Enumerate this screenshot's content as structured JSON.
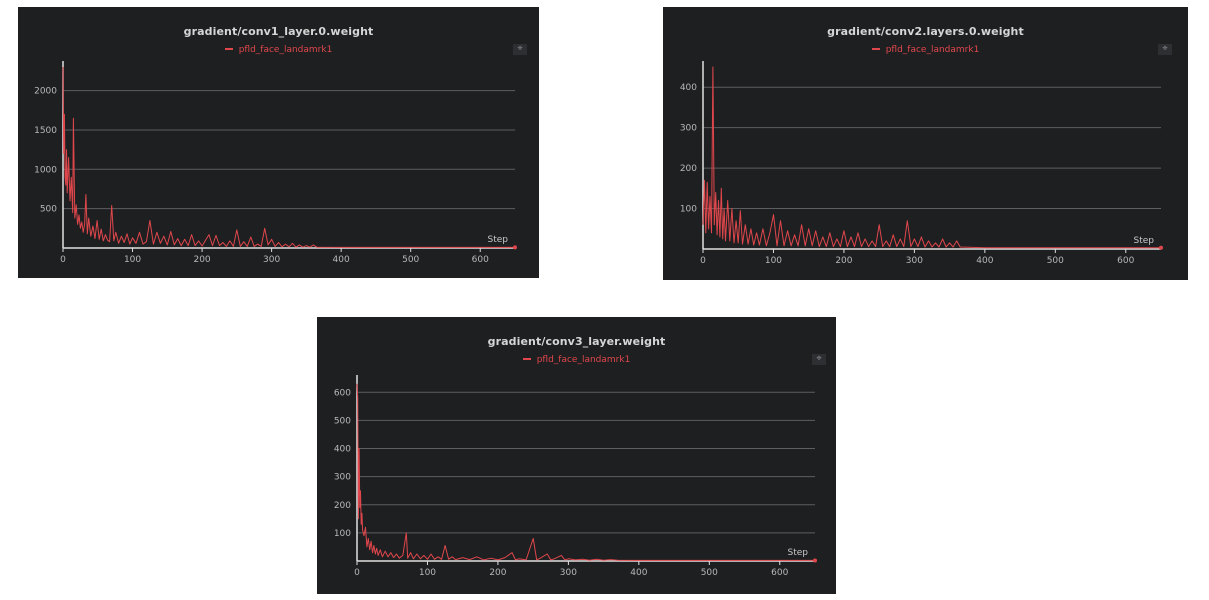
{
  "colors": {
    "background": "#1e1f21",
    "series": "#e0474c",
    "grid": "#5c5e62",
    "axis": "#e0e0e0",
    "text": "#d6d6d6"
  },
  "expand_icon": "expand-icon",
  "chart_data": [
    {
      "type": "line",
      "title": "gradient/conv1_layer.0.weight",
      "xlabel": "Step",
      "ylabel": "",
      "xlim": [
        0,
        650
      ],
      "ylim": [
        0,
        2300
      ],
      "xticks": [
        0,
        100,
        200,
        300,
        400,
        500,
        600
      ],
      "yticks": [
        500,
        1000,
        1500,
        2000
      ],
      "grid": true,
      "legend": "top-center",
      "series": [
        {
          "name": "pfld_face_landamrk1",
          "points": [
            [
              0,
              2300
            ],
            [
              1,
              1200
            ],
            [
              2,
              1700
            ],
            [
              3,
              900
            ],
            [
              4,
              800
            ],
            [
              5,
              1250
            ],
            [
              6,
              700
            ],
            [
              8,
              1150
            ],
            [
              10,
              600
            ],
            [
              12,
              900
            ],
            [
              14,
              450
            ],
            [
              15,
              1650
            ],
            [
              17,
              380
            ],
            [
              19,
              550
            ],
            [
              21,
              300
            ],
            [
              23,
              420
            ],
            [
              25,
              250
            ],
            [
              27,
              330
            ],
            [
              29,
              200
            ],
            [
              31,
              300
            ],
            [
              33,
              680
            ],
            [
              35,
              180
            ],
            [
              37,
              380
            ],
            [
              40,
              150
            ],
            [
              43,
              280
            ],
            [
              46,
              120
            ],
            [
              49,
              350
            ],
            [
              52,
              110
            ],
            [
              55,
              240
            ],
            [
              58,
              90
            ],
            [
              61,
              170
            ],
            [
              64,
              100
            ],
            [
              67,
              80
            ],
            [
              70,
              540
            ],
            [
              73,
              90
            ],
            [
              76,
              200
            ],
            [
              80,
              60
            ],
            [
              84,
              150
            ],
            [
              88,
              70
            ],
            [
              92,
              180
            ],
            [
              96,
              50
            ],
            [
              100,
              130
            ],
            [
              105,
              60
            ],
            [
              110,
              200
            ],
            [
              115,
              50
            ],
            [
              120,
              80
            ],
            [
              125,
              350
            ],
            [
              130,
              50
            ],
            [
              135,
              200
            ],
            [
              140,
              60
            ],
            [
              145,
              150
            ],
            [
              150,
              40
            ],
            [
              155,
              210
            ],
            [
              160,
              40
            ],
            [
              165,
              120
            ],
            [
              170,
              30
            ],
            [
              175,
              110
            ],
            [
              180,
              30
            ],
            [
              185,
              170
            ],
            [
              190,
              30
            ],
            [
              195,
              90
            ],
            [
              200,
              25
            ],
            [
              205,
              100
            ],
            [
              210,
              170
            ],
            [
              215,
              30
            ],
            [
              220,
              160
            ],
            [
              225,
              30
            ],
            [
              230,
              70
            ],
            [
              235,
              20
            ],
            [
              240,
              90
            ],
            [
              245,
              20
            ],
            [
              250,
              230
            ],
            [
              255,
              20
            ],
            [
              260,
              80
            ],
            [
              265,
              20
            ],
            [
              270,
              140
            ],
            [
              275,
              20
            ],
            [
              280,
              50
            ],
            [
              285,
              20
            ],
            [
              290,
              250
            ],
            [
              295,
              40
            ],
            [
              300,
              110
            ],
            [
              305,
              20
            ],
            [
              310,
              70
            ],
            [
              315,
              15
            ],
            [
              320,
              50
            ],
            [
              325,
              15
            ],
            [
              330,
              60
            ],
            [
              335,
              10
            ],
            [
              340,
              40
            ],
            [
              345,
              10
            ],
            [
              350,
              30
            ],
            [
              355,
              10
            ],
            [
              360,
              40
            ],
            [
              365,
              10
            ],
            [
              400,
              8
            ],
            [
              500,
              8
            ],
            [
              600,
              8
            ],
            [
              650,
              8
            ]
          ]
        }
      ]
    },
    {
      "type": "line",
      "title": "gradient/conv2.layers.0.weight",
      "xlabel": "Step",
      "ylabel": "",
      "xlim": [
        0,
        650
      ],
      "ylim": [
        0,
        450
      ],
      "xticks": [
        0,
        100,
        200,
        300,
        400,
        500,
        600
      ],
      "yticks": [
        100,
        200,
        300,
        400
      ],
      "grid": true,
      "legend": "top-center",
      "series": [
        {
          "name": "pfld_face_landamrk1",
          "points": [
            [
              0,
              60
            ],
            [
              2,
              170
            ],
            [
              4,
              40
            ],
            [
              6,
              165
            ],
            [
              8,
              50
            ],
            [
              10,
              130
            ],
            [
              12,
              40
            ],
            [
              14,
              450
            ],
            [
              16,
              60
            ],
            [
              18,
              140
            ],
            [
              20,
              35
            ],
            [
              22,
              120
            ],
            [
              24,
              30
            ],
            [
              26,
              150
            ],
            [
              28,
              25
            ],
            [
              30,
              100
            ],
            [
              32,
              20
            ],
            [
              35,
              120
            ],
            [
              38,
              20
            ],
            [
              41,
              100
            ],
            [
              44,
              15
            ],
            [
              47,
              70
            ],
            [
              50,
              15
            ],
            [
              53,
              95
            ],
            [
              56,
              12
            ],
            [
              60,
              60
            ],
            [
              64,
              12
            ],
            [
              68,
              50
            ],
            [
              72,
              10
            ],
            [
              76,
              40
            ],
            [
              80,
              10
            ],
            [
              85,
              50
            ],
            [
              90,
              8
            ],
            [
              95,
              40
            ],
            [
              100,
              85
            ],
            [
              105,
              8
            ],
            [
              110,
              70
            ],
            [
              115,
              8
            ],
            [
              120,
              45
            ],
            [
              125,
              8
            ],
            [
              130,
              35
            ],
            [
              135,
              8
            ],
            [
              140,
              60
            ],
            [
              145,
              8
            ],
            [
              150,
              50
            ],
            [
              155,
              8
            ],
            [
              160,
              45
            ],
            [
              165,
              6
            ],
            [
              170,
              30
            ],
            [
              175,
              6
            ],
            [
              180,
              40
            ],
            [
              185,
              6
            ],
            [
              190,
              25
            ],
            [
              195,
              6
            ],
            [
              200,
              45
            ],
            [
              205,
              6
            ],
            [
              210,
              30
            ],
            [
              215,
              6
            ],
            [
              220,
              40
            ],
            [
              225,
              6
            ],
            [
              230,
              25
            ],
            [
              235,
              6
            ],
            [
              240,
              20
            ],
            [
              245,
              6
            ],
            [
              250,
              60
            ],
            [
              255,
              6
            ],
            [
              260,
              20
            ],
            [
              265,
              6
            ],
            [
              270,
              35
            ],
            [
              275,
              6
            ],
            [
              280,
              25
            ],
            [
              285,
              6
            ],
            [
              290,
              70
            ],
            [
              295,
              6
            ],
            [
              300,
              25
            ],
            [
              305,
              6
            ],
            [
              310,
              30
            ],
            [
              315,
              5
            ],
            [
              320,
              20
            ],
            [
              325,
              5
            ],
            [
              330,
              15
            ],
            [
              335,
              5
            ],
            [
              340,
              25
            ],
            [
              345,
              5
            ],
            [
              350,
              15
            ],
            [
              355,
              5
            ],
            [
              360,
              20
            ],
            [
              365,
              5
            ],
            [
              400,
              3
            ],
            [
              500,
              3
            ],
            [
              600,
              3
            ],
            [
              650,
              3
            ]
          ]
        }
      ]
    },
    {
      "type": "line",
      "title": "gradient/conv3_layer.weight",
      "xlabel": "Step",
      "ylabel": "",
      "xlim": [
        0,
        650
      ],
      "ylim": [
        0,
        640
      ],
      "xticks": [
        0,
        100,
        200,
        300,
        400,
        500,
        600
      ],
      "yticks": [
        100,
        200,
        300,
        400,
        500,
        600
      ],
      "grid": true,
      "legend": "top-center",
      "series": [
        {
          "name": "pfld_face_landamrk1",
          "points": [
            [
              0,
              630
            ],
            [
              1,
              580
            ],
            [
              2,
              150
            ],
            [
              3,
              400
            ],
            [
              4,
              190
            ],
            [
              5,
              250
            ],
            [
              6,
              130
            ],
            [
              7,
              170
            ],
            [
              8,
              110
            ],
            [
              10,
              90
            ],
            [
              12,
              120
            ],
            [
              14,
              50
            ],
            [
              16,
              80
            ],
            [
              18,
              40
            ],
            [
              20,
              70
            ],
            [
              22,
              30
            ],
            [
              24,
              55
            ],
            [
              26,
              25
            ],
            [
              28,
              45
            ],
            [
              30,
              20
            ],
            [
              33,
              40
            ],
            [
              36,
              15
            ],
            [
              40,
              35
            ],
            [
              44,
              15
            ],
            [
              48,
              30
            ],
            [
              52,
              12
            ],
            [
              56,
              25
            ],
            [
              60,
              10
            ],
            [
              65,
              20
            ],
            [
              70,
              100
            ],
            [
              72,
              10
            ],
            [
              76,
              30
            ],
            [
              80,
              8
            ],
            [
              85,
              25
            ],
            [
              90,
              8
            ],
            [
              95,
              20
            ],
            [
              100,
              6
            ],
            [
              105,
              25
            ],
            [
              110,
              6
            ],
            [
              115,
              15
            ],
            [
              120,
              6
            ],
            [
              125,
              55
            ],
            [
              130,
              6
            ],
            [
              135,
              15
            ],
            [
              140,
              5
            ],
            [
              150,
              12
            ],
            [
              160,
              5
            ],
            [
              170,
              15
            ],
            [
              180,
              4
            ],
            [
              190,
              10
            ],
            [
              200,
              4
            ],
            [
              210,
              12
            ],
            [
              220,
              30
            ],
            [
              225,
              4
            ],
            [
              230,
              8
            ],
            [
              240,
              4
            ],
            [
              250,
              80
            ],
            [
              255,
              4
            ],
            [
              260,
              10
            ],
            [
              270,
              25
            ],
            [
              275,
              4
            ],
            [
              280,
              8
            ],
            [
              290,
              20
            ],
            [
              295,
              4
            ],
            [
              300,
              8
            ],
            [
              310,
              4
            ],
            [
              320,
              6
            ],
            [
              330,
              3
            ],
            [
              340,
              6
            ],
            [
              350,
              3
            ],
            [
              360,
              5
            ],
            [
              370,
              3
            ],
            [
              400,
              2
            ],
            [
              500,
              2
            ],
            [
              600,
              2
            ],
            [
              650,
              2
            ]
          ]
        }
      ]
    }
  ]
}
